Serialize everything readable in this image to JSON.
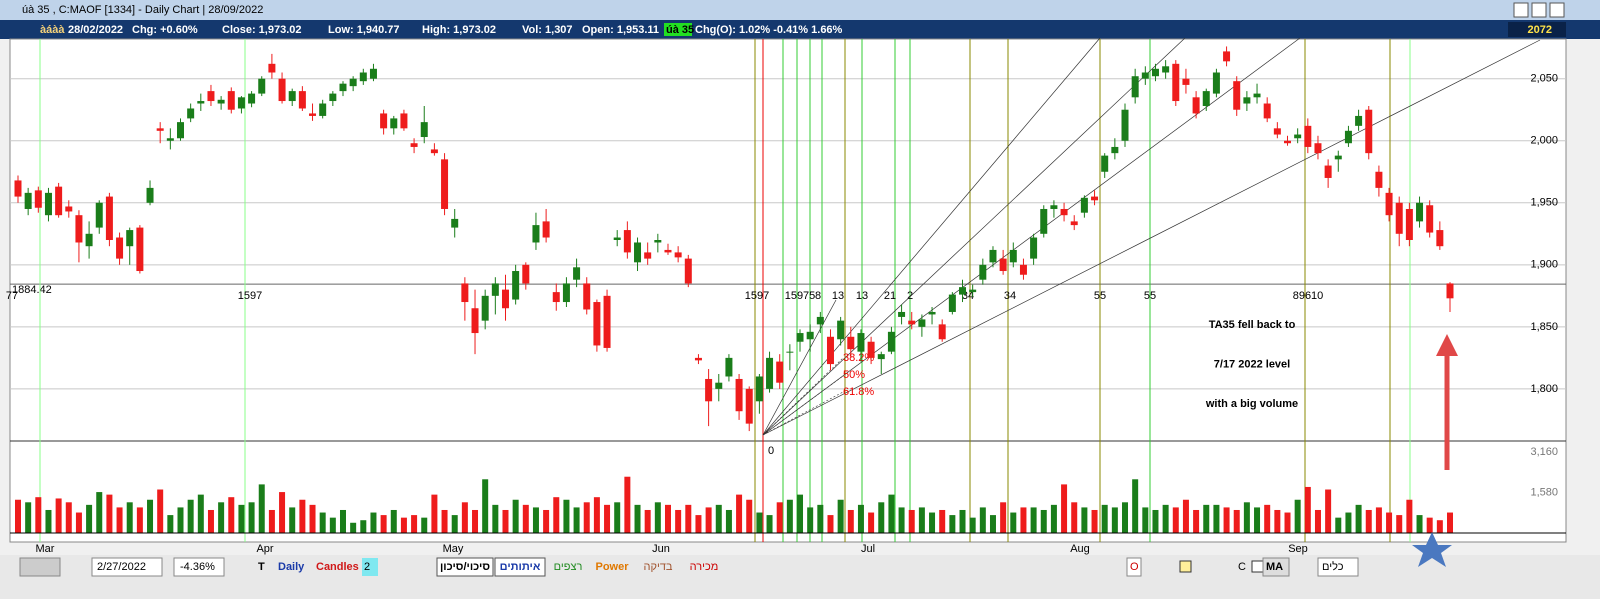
{
  "window": {
    "title": "úà 35 , C:MAOF  [1334]  - Daily Chart | 28/09/2022",
    "last_price": "2072"
  },
  "info_bar": {
    "name": "àáàà",
    "date": "28/02/2022",
    "chg": "Chg: +0.60%",
    "close": "Close: 1,973.02",
    "low": "Low: 1,940.77",
    "high": "High: 1,973.02",
    "vol": "Vol: 1,307",
    "open": "Open: 1,953.11",
    "tag": "úà 35",
    "chg_o": "Chg(O): 1.02% -0.41% 1.66%"
  },
  "chart_data": {
    "type": "candlestick",
    "candles": [
      [
        1968,
        1972,
        1950,
        1955
      ],
      [
        1945,
        1962,
        1940,
        1958
      ],
      [
        1960,
        1963,
        1942,
        1946
      ],
      [
        1940,
        1962,
        1935,
        1958
      ],
      [
        1963,
        1966,
        1938,
        1940
      ],
      [
        1947,
        1952,
        1938,
        1943
      ],
      [
        1940,
        1944,
        1902,
        1918
      ],
      [
        1915,
        1935,
        1905,
        1925
      ],
      [
        1930,
        1952,
        1925,
        1950
      ],
      [
        1955,
        1958,
        1915,
        1920
      ],
      [
        1922,
        1926,
        1900,
        1905
      ],
      [
        1915,
        1930,
        1900,
        1928
      ],
      [
        1930,
        1932,
        1893,
        1895
      ],
      [
        1950,
        1968,
        1948,
        1962
      ],
      [
        2010,
        2015,
        1998,
        2008
      ],
      [
        2000,
        2010,
        1993,
        2002
      ],
      [
        2002,
        2018,
        2000,
        2015
      ],
      [
        2018,
        2030,
        2015,
        2026
      ],
      [
        2030,
        2038,
        2024,
        2032
      ],
      [
        2040,
        2045,
        2028,
        2032
      ],
      [
        2030,
        2036,
        2025,
        2033
      ],
      [
        2040,
        2043,
        2022,
        2025
      ],
      [
        2026,
        2036,
        2022,
        2035
      ],
      [
        2030,
        2040,
        2027,
        2038
      ],
      [
        2038,
        2052,
        2036,
        2050
      ],
      [
        2062,
        2070,
        2050,
        2055
      ],
      [
        2050,
        2055,
        2030,
        2032
      ],
      [
        2032,
        2042,
        2028,
        2040
      ],
      [
        2040,
        2044,
        2024,
        2026
      ],
      [
        2022,
        2030,
        2016,
        2020
      ],
      [
        2020,
        2033,
        2018,
        2030
      ],
      [
        2032,
        2040,
        2028,
        2038
      ],
      [
        2040,
        2048,
        2036,
        2046
      ],
      [
        2044,
        2052,
        2040,
        2050
      ],
      [
        2048,
        2058,
        2045,
        2055
      ],
      [
        2050,
        2062,
        2048,
        2058
      ],
      [
        2022,
        2025,
        2005,
        2010
      ],
      [
        2010,
        2020,
        2005,
        2018
      ],
      [
        2022,
        2025,
        2008,
        2010
      ],
      [
        1998,
        2002,
        1990,
        1995
      ],
      [
        2003,
        2028,
        1998,
        2015
      ],
      [
        1993,
        1998,
        1988,
        1990
      ],
      [
        1985,
        1990,
        1940,
        1945
      ],
      [
        1930,
        1945,
        1922,
        1937
      ],
      [
        1885,
        1890,
        1855,
        1870
      ],
      [
        1865,
        1880,
        1828,
        1845
      ],
      [
        1855,
        1880,
        1848,
        1875
      ],
      [
        1875,
        1890,
        1860,
        1885
      ],
      [
        1880,
        1892,
        1855,
        1865
      ],
      [
        1872,
        1900,
        1868,
        1895
      ],
      [
        1900,
        1902,
        1880,
        1885
      ],
      [
        1918,
        1942,
        1912,
        1932
      ],
      [
        1935,
        1945,
        1918,
        1922
      ],
      [
        1878,
        1885,
        1863,
        1870
      ],
      [
        1870,
        1890,
        1866,
        1885
      ],
      [
        1888,
        1905,
        1882,
        1898
      ],
      [
        1885,
        1890,
        1860,
        1864
      ],
      [
        1870,
        1872,
        1830,
        1835
      ],
      [
        1875,
        1880,
        1830,
        1833
      ],
      [
        1920,
        1928,
        1915,
        1922
      ],
      [
        1928,
        1935,
        1905,
        1910
      ],
      [
        1902,
        1922,
        1895,
        1918
      ],
      [
        1910,
        1918,
        1900,
        1905
      ],
      [
        1918,
        1925,
        1910,
        1920
      ],
      [
        1912,
        1917,
        1908,
        1910
      ],
      [
        1910,
        1915,
        1902,
        1906
      ],
      [
        1905,
        1908,
        1882,
        1885
      ],
      [
        1825,
        1828,
        1820,
        1823
      ],
      [
        1808,
        1816,
        1770,
        1790
      ],
      [
        1800,
        1812,
        1790,
        1805
      ],
      [
        1810,
        1828,
        1806,
        1825
      ],
      [
        1808,
        1812,
        1775,
        1782
      ],
      [
        1800,
        1802,
        1766,
        1772
      ],
      [
        1790,
        1812,
        1780,
        1810
      ],
      [
        1800,
        1830,
        1797,
        1825
      ],
      [
        1822,
        1828,
        1800,
        1805
      ],
      [
        1830,
        1836,
        1815,
        1830
      ],
      [
        1838,
        1848,
        1830,
        1845
      ],
      [
        1840,
        1852,
        1830,
        1846
      ],
      [
        1852,
        1862,
        1845,
        1858
      ],
      [
        1842,
        1848,
        1815,
        1820
      ],
      [
        1840,
        1858,
        1835,
        1855
      ],
      [
        1842,
        1850,
        1825,
        1832
      ],
      [
        1830,
        1848,
        1822,
        1845
      ],
      [
        1838,
        1842,
        1820,
        1825
      ],
      [
        1824,
        1830,
        1812,
        1828
      ],
      [
        1830,
        1850,
        1828,
        1846
      ],
      [
        1858,
        1868,
        1852,
        1862
      ],
      [
        1855,
        1862,
        1848,
        1852
      ],
      [
        1850,
        1860,
        1842,
        1856
      ],
      [
        1860,
        1866,
        1852,
        1862
      ],
      [
        1852,
        1856,
        1838,
        1840
      ],
      [
        1862,
        1878,
        1860,
        1876
      ],
      [
        1876,
        1888,
        1870,
        1882
      ],
      [
        1878,
        1884,
        1874,
        1880
      ],
      [
        1888,
        1905,
        1884,
        1900
      ],
      [
        1902,
        1915,
        1898,
        1912
      ],
      [
        1905,
        1912,
        1892,
        1895
      ],
      [
        1902,
        1918,
        1898,
        1912
      ],
      [
        1900,
        1905,
        1888,
        1892
      ],
      [
        1905,
        1925,
        1900,
        1922
      ],
      [
        1925,
        1948,
        1922,
        1945
      ],
      [
        1945,
        1952,
        1938,
        1948
      ],
      [
        1945,
        1950,
        1935,
        1940
      ],
      [
        1935,
        1940,
        1928,
        1932
      ],
      [
        1942,
        1956,
        1938,
        1954
      ],
      [
        1955,
        1960,
        1948,
        1952
      ],
      [
        1975,
        1990,
        1970,
        1988
      ],
      [
        1990,
        2002,
        1985,
        1995
      ],
      [
        2000,
        2030,
        1995,
        2025
      ],
      [
        2035,
        2058,
        2030,
        2052
      ],
      [
        2050,
        2060,
        2045,
        2055
      ],
      [
        2052,
        2062,
        2048,
        2058
      ],
      [
        2055,
        2065,
        2050,
        2060
      ],
      [
        2062,
        2065,
        2028,
        2032
      ],
      [
        2050,
        2058,
        2038,
        2045
      ],
      [
        2035,
        2040,
        2018,
        2022
      ],
      [
        2028,
        2042,
        2024,
        2040
      ],
      [
        2038,
        2058,
        2035,
        2055
      ],
      [
        2072,
        2076,
        2060,
        2064
      ],
      [
        2048,
        2052,
        2020,
        2025
      ],
      [
        2030,
        2040,
        2024,
        2035
      ],
      [
        2035,
        2046,
        2030,
        2038
      ],
      [
        2030,
        2035,
        2015,
        2018
      ],
      [
        2010,
        2015,
        2002,
        2005
      ],
      [
        2000,
        2004,
        1996,
        1998
      ],
      [
        2002,
        2010,
        1998,
        2005
      ],
      [
        2012,
        2018,
        1990,
        1995
      ],
      [
        1998,
        2004,
        1985,
        1990
      ],
      [
        1980,
        1985,
        1962,
        1970
      ],
      [
        1985,
        1992,
        1975,
        1988
      ],
      [
        1998,
        2012,
        1995,
        2008
      ],
      [
        2012,
        2025,
        2008,
        2020
      ],
      [
        2025,
        2028,
        1985,
        1990
      ],
      [
        1975,
        1980,
        1955,
        1962
      ],
      [
        1958,
        1962,
        1935,
        1940
      ],
      [
        1950,
        1955,
        1915,
        1925
      ],
      [
        1945,
        1950,
        1915,
        1920
      ],
      [
        1935,
        1955,
        1930,
        1950
      ],
      [
        1948,
        1952,
        1922,
        1926
      ],
      [
        1928,
        1935,
        1912,
        1915
      ],
      [
        1885,
        1886,
        1862,
        1873
      ]
    ],
    "volumes": [
      1300,
      1200,
      1400,
      900,
      1350,
      1200,
      800,
      1100,
      1600,
      1500,
      1000,
      1200,
      1000,
      1300,
      1700,
      700,
      1000,
      1300,
      1500,
      900,
      1200,
      1400,
      1100,
      1200,
      1900,
      900,
      1600,
      1000,
      1300,
      1100,
      800,
      600,
      900,
      400,
      500,
      800,
      700,
      900,
      600,
      700,
      600,
      1500,
      900,
      700,
      1200,
      900,
      2100,
      1100,
      900,
      1300,
      1100,
      1000,
      900,
      1400,
      1300,
      1000,
      1200,
      1400,
      1100,
      1200,
      2200,
      1100,
      900,
      1200,
      1100,
      900,
      1100,
      700,
      1000,
      1100,
      900,
      1500,
      1300,
      800,
      700,
      1200,
      1300,
      1500,
      1000,
      1100,
      700,
      1300,
      900,
      1100,
      800,
      1200,
      1500,
      1000,
      900,
      1000,
      800,
      900,
      700,
      900,
      600,
      1000,
      700,
      1200,
      800,
      1000,
      1000,
      900,
      1100,
      1900,
      1200,
      1000,
      900,
      1100,
      1000,
      1200,
      2100,
      1000,
      900,
      1100,
      1000,
      1300,
      900,
      1100,
      1100,
      1000,
      900,
      1200,
      1000,
      1100,
      900,
      800,
      1300,
      1800,
      900,
      1700,
      600,
      800,
      1100,
      900,
      1000,
      800,
      700,
      1300,
      700,
      600,
      500,
      800,
      1700
    ],
    "ylim": [
      1758,
      2082
    ],
    "yticks": [
      {
        "value": 1800,
        "label": "1,800"
      },
      {
        "value": 1850,
        "label": "1,850"
      },
      {
        "value": 1900,
        "label": "1,900"
      },
      {
        "value": 1950,
        "label": "1,950"
      },
      {
        "value": 2000,
        "label": "2,000"
      },
      {
        "value": 2050,
        "label": "2,050"
      }
    ],
    "vol_ylim": [
      0,
      3440
    ],
    "vol_ticks": [
      {
        "value": 1580,
        "label": "1,580"
      },
      {
        "value": 3160,
        "label": "3,160"
      }
    ],
    "x_labels": [
      "Mar",
      "Apr",
      "May",
      "Jun",
      "Jul",
      "Aug",
      "Sep"
    ],
    "hline": {
      "value": 1884.42,
      "label": "1884.42"
    },
    "time_labels": [
      "77",
      "1597",
      "1597",
      "15975",
      "8",
      "13",
      "13",
      "21",
      "2",
      "34",
      "34",
      "55",
      "55",
      "89610"
    ],
    "fib_labels": [
      "38.2%",
      "50%",
      "61.8%"
    ],
    "pivot_label": "0",
    "annotations": [
      "TA35 fell back to",
      "7/17 2022 level",
      "with a big volume"
    ]
  },
  "toolbar": {
    "date": "2/27/2022",
    "pct": "-4.36%",
    "t": "T",
    "period": "Daily",
    "style": "Candles",
    "num": "2",
    "risk": "סיכוי/סיכון",
    "signals": "איתותים",
    "seq": "רצפים",
    "power": "Power",
    "check": "בדיקה",
    "sell": "מכירה",
    "o": "O",
    "c": "C",
    "ma": "MA",
    "tools": "כלים"
  }
}
